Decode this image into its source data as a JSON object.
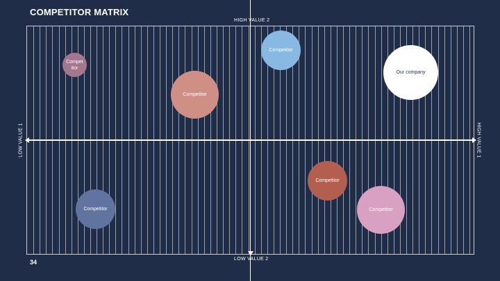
{
  "slide": {
    "title": "COMPETITOR MATRIX",
    "page_number": "34"
  },
  "axes": {
    "top": "HIGH VALUE 2",
    "bottom": "LOW VALUE 2",
    "left": "LOW VALUE 1",
    "right": "HIGH VALUE 1"
  },
  "bubbles": [
    {
      "label": "Compet itor",
      "color": "#a3788e",
      "text_color": "#ffffff"
    },
    {
      "label": "Competitor",
      "color": "#cf8f84",
      "text_color": "#ffffff"
    },
    {
      "label": "Competitor",
      "color": "#87b9e3",
      "text_color": "#ffffff"
    },
    {
      "label": "Our company",
      "color": "#ffffff",
      "text_color": "#1f2d48"
    },
    {
      "label": "Competitor",
      "color": "#61749f",
      "text_color": "#ffffff"
    },
    {
      "label": "Competitor",
      "color": "#b35f50",
      "text_color": "#ffffff"
    },
    {
      "label": "Competitor",
      "color": "#d9a1c1",
      "text_color": "#ffffff"
    }
  ],
  "colors": {
    "background": "#1f2d48",
    "lines": "#ffffff"
  }
}
